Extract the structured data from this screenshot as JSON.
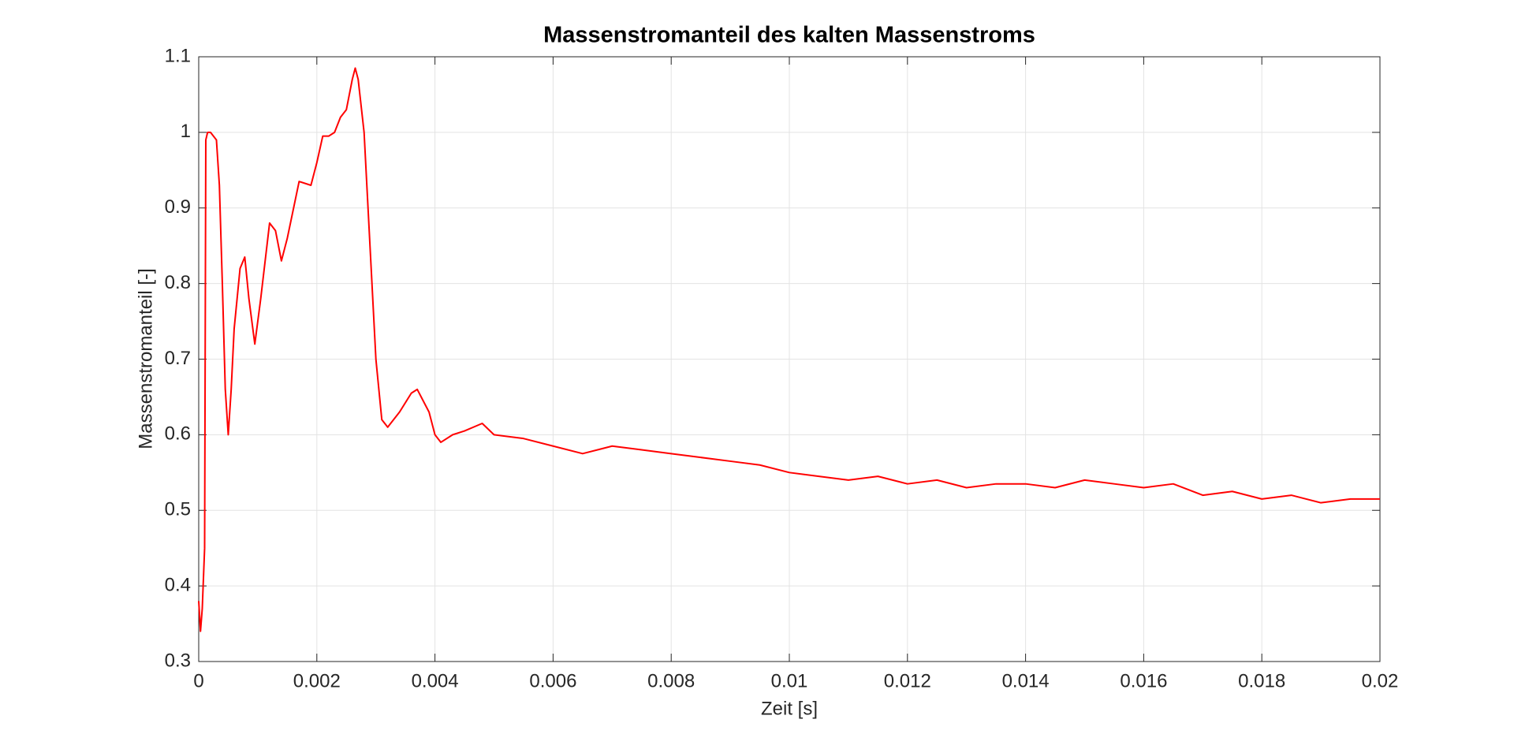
{
  "chart_data": {
    "type": "line",
    "title": "Massenstromanteil des kalten Massenstroms",
    "x_label": "Zeit [s]",
    "y_label": "Massenstromanteil [-]",
    "x": [
      0,
      3e-05,
      6e-05,
      0.0001,
      0.00012,
      0.00015,
      0.0002,
      0.0003,
      0.00035,
      0.0004,
      0.00045,
      0.0005,
      0.00055,
      0.0006,
      0.0007,
      0.00078,
      0.00085,
      0.00095,
      0.00105,
      0.0012,
      0.0013,
      0.0014,
      0.0015,
      0.0017,
      0.0019,
      0.002,
      0.0021,
      0.0022,
      0.0023,
      0.0024,
      0.0025,
      0.0026,
      0.00265,
      0.0027,
      0.0028,
      0.0029,
      0.003,
      0.0031,
      0.0032,
      0.0034,
      0.0036,
      0.0037,
      0.0038,
      0.0039,
      0.004,
      0.0041,
      0.0043,
      0.0045,
      0.0048,
      0.005,
      0.0055,
      0.006,
      0.0065,
      0.007,
      0.0075,
      0.008,
      0.0085,
      0.009,
      0.0095,
      0.01,
      0.0105,
      0.011,
      0.0115,
      0.012,
      0.0125,
      0.013,
      0.0135,
      0.014,
      0.0145,
      0.015,
      0.0155,
      0.016,
      0.0165,
      0.017,
      0.0175,
      0.018,
      0.0185,
      0.019,
      0.0195,
      0.02
    ],
    "values": [
      0.38,
      0.34,
      0.37,
      0.45,
      0.99,
      1.0,
      1.0,
      0.99,
      0.93,
      0.8,
      0.66,
      0.6,
      0.66,
      0.74,
      0.82,
      0.835,
      0.78,
      0.72,
      0.78,
      0.88,
      0.87,
      0.83,
      0.86,
      0.935,
      0.93,
      0.96,
      0.995,
      0.995,
      1.0,
      1.02,
      1.03,
      1.07,
      1.085,
      1.07,
      1.0,
      0.85,
      0.7,
      0.62,
      0.61,
      0.63,
      0.655,
      0.66,
      0.645,
      0.63,
      0.6,
      0.59,
      0.6,
      0.605,
      0.615,
      0.6,
      0.595,
      0.585,
      0.575,
      0.585,
      0.58,
      0.575,
      0.57,
      0.565,
      0.56,
      0.55,
      0.545,
      0.54,
      0.545,
      0.535,
      0.54,
      0.53,
      0.535,
      0.535,
      0.53,
      0.54,
      0.535,
      0.53,
      0.535,
      0.52,
      0.525,
      0.515,
      0.52,
      0.51,
      0.515,
      0.515
    ],
    "color": "#ff0000",
    "xlim": [
      0,
      0.02
    ],
    "xticks": [
      0,
      0.002,
      0.004,
      0.006,
      0.008,
      0.01,
      0.012,
      0.014,
      0.016,
      0.018,
      0.02
    ],
    "ylim": [
      0.3,
      1.1
    ],
    "yticks": [
      0.3,
      0.4,
      0.5,
      0.6,
      0.7,
      0.8,
      0.9,
      1,
      1.1
    ],
    "grid": true
  }
}
